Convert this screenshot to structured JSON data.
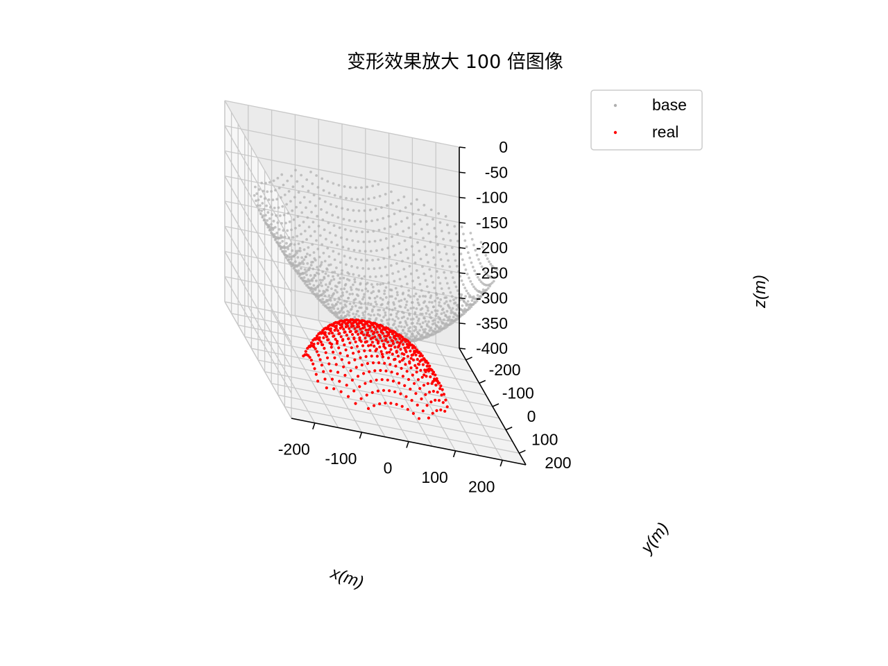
{
  "chart_data": {
    "type": "scatter",
    "projection": "3d",
    "title": "变形效果放大 100 倍图像",
    "xlabel": "x(m)",
    "ylabel": "y(m)",
    "zlabel": "z(m)",
    "xlim": [
      -250,
      250
    ],
    "ylim": [
      -250,
      250
    ],
    "zlim": [
      -400,
      0
    ],
    "xticks": [
      -200,
      -100,
      0,
      100,
      200
    ],
    "yticks": [
      -200,
      -100,
      0,
      100,
      200
    ],
    "zticks": [
      0,
      -50,
      -100,
      -150,
      -200,
      -250,
      -300,
      -350,
      -400
    ],
    "xtick_labels": [
      "-200",
      "-100",
      "0",
      "100",
      "200"
    ],
    "ytick_labels": [
      "-200",
      "-100",
      "0",
      "100",
      "200"
    ],
    "ztick_labels": [
      "0",
      "-50",
      "-100",
      "-150",
      "-200",
      "-250",
      "-300",
      "-350",
      "-400"
    ],
    "grid": true,
    "legend_position": "top-right",
    "series": [
      {
        "name": "base",
        "color": "#b0b0b0",
        "shape": "spherical cap (paraboloid dish)",
        "rim_radius": 250,
        "rim_z": -100,
        "bottom_z": -300
      },
      {
        "name": "real",
        "color": "#ff0000",
        "shape": "deformed central region (x100 magnified)",
        "region_radius": 150,
        "center_z": -300,
        "edge_z": -400
      }
    ]
  },
  "legend": {
    "items": [
      {
        "label": "base",
        "color": "#b0b0b0"
      },
      {
        "label": "real",
        "color": "#ff0000"
      }
    ]
  }
}
